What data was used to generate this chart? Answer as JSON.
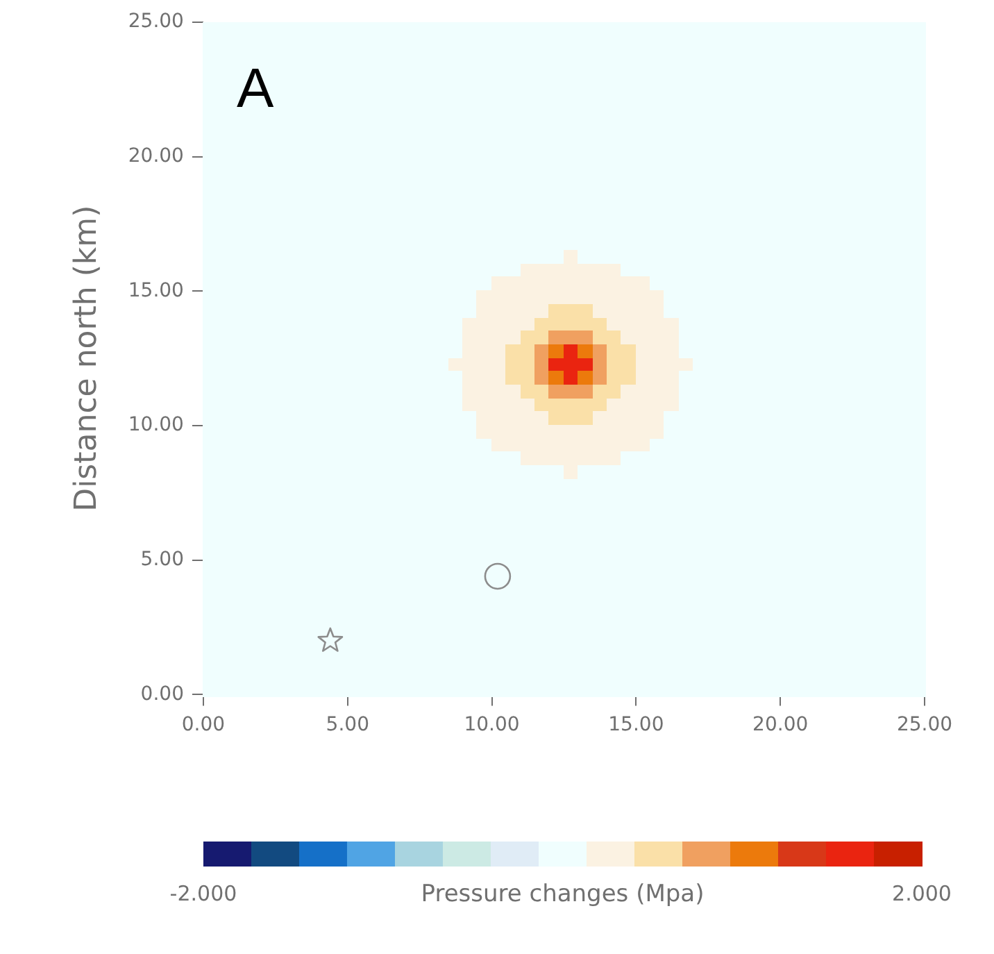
{
  "chart_data": {
    "type": "heatmap",
    "ylabel": "Distance north (km)",
    "clabel": "Pressure changes (Mpa)",
    "annotations": [
      "A"
    ],
    "xlim": [
      0,
      25
    ],
    "ylim": [
      0,
      25
    ],
    "xticks": [
      {
        "value": 0,
        "label": "0.00"
      },
      {
        "value": 5,
        "label": "5.00"
      },
      {
        "value": 10,
        "label": "10.00"
      },
      {
        "value": 15,
        "label": "15.00"
      },
      {
        "value": 20,
        "label": "20.00"
      },
      {
        "value": 25,
        "label": "25.00"
      }
    ],
    "yticks": [
      {
        "value": 0,
        "label": "0.00"
      },
      {
        "value": 5,
        "label": "5.00"
      },
      {
        "value": 10,
        "label": "10.00"
      },
      {
        "value": 15,
        "label": "15.00"
      },
      {
        "value": 20,
        "label": "20.00"
      },
      {
        "value": 25,
        "label": "25.00"
      }
    ],
    "clim": [
      -2,
      2
    ],
    "cticks": [
      {
        "value": -2,
        "label": "-2.000"
      },
      {
        "value": 2,
        "label": "2.000"
      }
    ],
    "series": [
      {
        "type": "scatter",
        "x": [
          4.4
        ],
        "values": [
          2.0
        ],
        "marker": "star",
        "color": "#8c8c8c"
      },
      {
        "type": "scatter",
        "x": [
          10.2
        ],
        "values": [
          4.4
        ],
        "marker": "circle",
        "color": "#8c8c8c"
      }
    ],
    "cells": [
      [
        0,
        0,
        0,
        0,
        0,
        0,
        0,
        0,
        0,
        0,
        0,
        0,
        0,
        0,
        0,
        0,
        0,
        0,
        0,
        0,
        0,
        0,
        0,
        0,
        0,
        0,
        0,
        0,
        0,
        0,
        0,
        0,
        0,
        0,
        0,
        0,
        0,
        0,
        0,
        0,
        0,
        0,
        0,
        0,
        0,
        0,
        0,
        0,
        0,
        0
      ],
      [
        0,
        0,
        0,
        0,
        0,
        0,
        0,
        0,
        0,
        0,
        0,
        0,
        0,
        0,
        0,
        0,
        0,
        0,
        0,
        0,
        0,
        0,
        0,
        0,
        0,
        0,
        0,
        0,
        0,
        0,
        0,
        0,
        0,
        0,
        0,
        0,
        0,
        0,
        0,
        0,
        0,
        0,
        0,
        0,
        0,
        0,
        0,
        0,
        0,
        0
      ],
      [
        0,
        0,
        0,
        0,
        0,
        0,
        0,
        0,
        0,
        0,
        0,
        0,
        0,
        0,
        0,
        0,
        0,
        0,
        0,
        0,
        0,
        0,
        0,
        0,
        0,
        0,
        0,
        0,
        0,
        0,
        0,
        0,
        0,
        0,
        0,
        0,
        0,
        0,
        0,
        0,
        0,
        0,
        0,
        0,
        0,
        0,
        0,
        0,
        0,
        0
      ],
      [
        0,
        0,
        0,
        0,
        0,
        0,
        0,
        0,
        0,
        0,
        0,
        0,
        0,
        0,
        0,
        0,
        0,
        0,
        0,
        0,
        0,
        0,
        0,
        0,
        0,
        0,
        0,
        0,
        0,
        0,
        0,
        0,
        0,
        0,
        0,
        0,
        0,
        0,
        0,
        0,
        0,
        0,
        0,
        0,
        0,
        0,
        0,
        0,
        0,
        0
      ],
      [
        0,
        0,
        0,
        0,
        0,
        0,
        0,
        0,
        0,
        0,
        0,
        0,
        0,
        0,
        0,
        0,
        0,
        0,
        0,
        0,
        0,
        0,
        0,
        0,
        0,
        0,
        0,
        0,
        0,
        0,
        0,
        0,
        0,
        0,
        0,
        0,
        0,
        0,
        0,
        0,
        0,
        0,
        0,
        0,
        0,
        0,
        0,
        0,
        0,
        0
      ],
      [
        0,
        0,
        0,
        0,
        0,
        0,
        0,
        0,
        0,
        0,
        0,
        0,
        0,
        0,
        0,
        0,
        0,
        0,
        0,
        0,
        0,
        0,
        0,
        0,
        0,
        0,
        0,
        0,
        0,
        0,
        0,
        0,
        0,
        0,
        0,
        0,
        0,
        0,
        0,
        0,
        0,
        0,
        0,
        0,
        0,
        0,
        0,
        0,
        0,
        0
      ],
      [
        0,
        0,
        0,
        0,
        0,
        0,
        0,
        0,
        0,
        0,
        0,
        0,
        0,
        0,
        0,
        0,
        0,
        0,
        0,
        0,
        0,
        0,
        0,
        0,
        0,
        0,
        0,
        0,
        0,
        0,
        0,
        0,
        0,
        0,
        0,
        0,
        0,
        0,
        0,
        0,
        0,
        0,
        0,
        0,
        0,
        0,
        0,
        0,
        0,
        0
      ],
      [
        0,
        0,
        0,
        0,
        0,
        0,
        0,
        0,
        0,
        0,
        0,
        0,
        0,
        0,
        0,
        0,
        0,
        0,
        0,
        0,
        0,
        0,
        0,
        0,
        0,
        0,
        0,
        0,
        0,
        0,
        0,
        0,
        0,
        0,
        0,
        0,
        0,
        0,
        0,
        0,
        0,
        0,
        0,
        0,
        0,
        0,
        0,
        0,
        0,
        0
      ],
      [
        0,
        0,
        0,
        0,
        0,
        0,
        0,
        0,
        0,
        0,
        0,
        0,
        0,
        0,
        0,
        0,
        0,
        0,
        0,
        0,
        0,
        0,
        0,
        0,
        0,
        0,
        0,
        0,
        0,
        0,
        0,
        0,
        0,
        0,
        0,
        0,
        0,
        0,
        0,
        0,
        0,
        0,
        0,
        0,
        0,
        0,
        0,
        0,
        0,
        0
      ],
      [
        0,
        0,
        0,
        0,
        0,
        0,
        0,
        0,
        0,
        0,
        0,
        0,
        0,
        0,
        0,
        0,
        0,
        0,
        0,
        0,
        0,
        0,
        0,
        0,
        0,
        0,
        0,
        0,
        0,
        0,
        0,
        0,
        0,
        0,
        0,
        0,
        0,
        0,
        0,
        0,
        0,
        0,
        0,
        0,
        0,
        0,
        0,
        0,
        0,
        0
      ],
      [
        0,
        0,
        0,
        0,
        0,
        0,
        0,
        0,
        0,
        0,
        0,
        0,
        0,
        0,
        0,
        0,
        0,
        0,
        0,
        0,
        0,
        0,
        0,
        0,
        0,
        0,
        0,
        0,
        0,
        0,
        0,
        0,
        0,
        0,
        0,
        0,
        0,
        0,
        0,
        0,
        0,
        0,
        0,
        0,
        0,
        0,
        0,
        0,
        0,
        0
      ],
      [
        0,
        0,
        0,
        0,
        0,
        0,
        0,
        0,
        0,
        0,
        0,
        0,
        0,
        0,
        0,
        0,
        0,
        0,
        0,
        0,
        0,
        0,
        0,
        0,
        0,
        0,
        0,
        0,
        0,
        0,
        0,
        0,
        0,
        0,
        0,
        0,
        0,
        0,
        0,
        0,
        0,
        0,
        0,
        0,
        0,
        0,
        0,
        0,
        0,
        0
      ],
      [
        0,
        0,
        0,
        0,
        0,
        0,
        0,
        0,
        0,
        0,
        0,
        0,
        0,
        0,
        0,
        0,
        0,
        0,
        0,
        0,
        0,
        0,
        0,
        0,
        0,
        0,
        0,
        0,
        0,
        0,
        0,
        0,
        0,
        0,
        0,
        0,
        0,
        0,
        0,
        0,
        0,
        0,
        0,
        0,
        0,
        0,
        0,
        0,
        0,
        0
      ],
      [
        0,
        0,
        0,
        0,
        0,
        0,
        0,
        0,
        0,
        0,
        0,
        0,
        0,
        0,
        0,
        0,
        0,
        0,
        0,
        0,
        0,
        0,
        0,
        0,
        0,
        0,
        0,
        0,
        0,
        0,
        0,
        0,
        0,
        0,
        0,
        0,
        0,
        0,
        0,
        0,
        0,
        0,
        0,
        0,
        0,
        0,
        0,
        0,
        0,
        0
      ],
      [
        0,
        0,
        0,
        0,
        0,
        0,
        0,
        0,
        0,
        0,
        0,
        0,
        0,
        0,
        0,
        0,
        0,
        0,
        0,
        0,
        0,
        0,
        0,
        0,
        0,
        0,
        0,
        0,
        0,
        0,
        0,
        0,
        0,
        0,
        0,
        0,
        0,
        0,
        0,
        0,
        0,
        0,
        0,
        0,
        0,
        0,
        0,
        0,
        0,
        0
      ],
      [
        0,
        0,
        0,
        0,
        0,
        0,
        0,
        0,
        0,
        0,
        0,
        0,
        0,
        0,
        0,
        0,
        0,
        0,
        0,
        0,
        0,
        0,
        0,
        0,
        0,
        0,
        0,
        0,
        0,
        0,
        0,
        0,
        0,
        0,
        0,
        0,
        0,
        0,
        0,
        0,
        0,
        0,
        0,
        0,
        0,
        0,
        0,
        0,
        0,
        0
      ],
      [
        0,
        0,
        0,
        0,
        0,
        0,
        0,
        0,
        0,
        0,
        0,
        0,
        0,
        0,
        0,
        0,
        0,
        0,
        0,
        0,
        0,
        0,
        0,
        0,
        0,
        0,
        0,
        0,
        0,
        0,
        0,
        0,
        0,
        0,
        0,
        0,
        0,
        0,
        0,
        0,
        0,
        0,
        0,
        0,
        0,
        0,
        0,
        0,
        0,
        0
      ],
      [
        0,
        0,
        0,
        0,
        0,
        0,
        0,
        0,
        0,
        0,
        0,
        0,
        0,
        0,
        0,
        0,
        0,
        0,
        0,
        0,
        0,
        0,
        0,
        0,
        0,
        0.3,
        0,
        0,
        0,
        0,
        0,
        0,
        0,
        0,
        0,
        0,
        0,
        0,
        0,
        0,
        0,
        0,
        0,
        0,
        0,
        0,
        0,
        0,
        0,
        0
      ],
      [
        0,
        0,
        0,
        0,
        0,
        0,
        0,
        0,
        0,
        0,
        0,
        0,
        0,
        0,
        0,
        0,
        0,
        0,
        0,
        0,
        0,
        0,
        0.3,
        0.3,
        0.3,
        0.3,
        0.3,
        0.3,
        0.3,
        0,
        0,
        0,
        0,
        0,
        0,
        0,
        0,
        0,
        0,
        0,
        0,
        0,
        0,
        0,
        0,
        0,
        0,
        0,
        0,
        0
      ],
      [
        0,
        0,
        0,
        0,
        0,
        0,
        0,
        0,
        0,
        0,
        0,
        0,
        0,
        0,
        0,
        0,
        0,
        0,
        0,
        0,
        0.3,
        0.3,
        0.3,
        0.3,
        0.3,
        0.3,
        0.3,
        0.3,
        0.3,
        0.3,
        0.3,
        0,
        0,
        0,
        0,
        0,
        0,
        0,
        0,
        0,
        0,
        0,
        0,
        0,
        0,
        0,
        0,
        0,
        0,
        0
      ],
      [
        0,
        0,
        0,
        0,
        0,
        0,
        0,
        0,
        0,
        0,
        0,
        0,
        0,
        0,
        0,
        0,
        0,
        0,
        0,
        0.3,
        0.3,
        0.3,
        0.3,
        0.3,
        0.3,
        0.3,
        0.3,
        0.3,
        0.3,
        0.3,
        0.3,
        0.3,
        0,
        0,
        0,
        0,
        0,
        0,
        0,
        0,
        0,
        0,
        0,
        0,
        0,
        0,
        0,
        0,
        0,
        0
      ],
      [
        0,
        0,
        0,
        0,
        0,
        0,
        0,
        0,
        0,
        0,
        0,
        0,
        0,
        0,
        0,
        0,
        0,
        0,
        0,
        0.3,
        0.3,
        0.3,
        0.3,
        0.3,
        0.5,
        0.5,
        0.5,
        0.3,
        0.3,
        0.3,
        0.3,
        0.3,
        0,
        0,
        0,
        0,
        0,
        0,
        0,
        0,
        0,
        0,
        0,
        0,
        0,
        0,
        0,
        0,
        0,
        0
      ],
      [
        0,
        0,
        0,
        0,
        0,
        0,
        0,
        0,
        0,
        0,
        0,
        0,
        0,
        0,
        0,
        0,
        0,
        0,
        0.3,
        0.3,
        0.3,
        0.3,
        0.3,
        0.5,
        0.5,
        0.5,
        0.5,
        0.5,
        0.3,
        0.3,
        0.3,
        0.3,
        0.3,
        0,
        0,
        0,
        0,
        0,
        0,
        0,
        0,
        0,
        0,
        0,
        0,
        0,
        0,
        0,
        0,
        0
      ],
      [
        0,
        0,
        0,
        0,
        0,
        0,
        0,
        0,
        0,
        0,
        0,
        0,
        0,
        0,
        0,
        0,
        0,
        0,
        0.3,
        0.3,
        0.3,
        0.3,
        0.5,
        0.5,
        0.8,
        0.8,
        0.8,
        0.5,
        0.5,
        0.3,
        0.3,
        0.3,
        0.3,
        0,
        0,
        0,
        0,
        0,
        0,
        0,
        0,
        0,
        0,
        0,
        0,
        0,
        0,
        0,
        0,
        0
      ],
      [
        0,
        0,
        0,
        0,
        0,
        0,
        0,
        0,
        0,
        0,
        0,
        0,
        0,
        0,
        0,
        0,
        0,
        0,
        0.3,
        0.3,
        0.3,
        0.5,
        0.5,
        0.8,
        1.1,
        1.6,
        1.1,
        0.8,
        0.5,
        0.5,
        0.3,
        0.3,
        0.3,
        0,
        0,
        0,
        0,
        0,
        0,
        0,
        0,
        0,
        0,
        0,
        0,
        0,
        0,
        0,
        0,
        0
      ],
      [
        0,
        0,
        0,
        0,
        0,
        0,
        0,
        0,
        0,
        0,
        0,
        0,
        0,
        0,
        0,
        0,
        0,
        0.3,
        0.3,
        0.3,
        0.3,
        0.5,
        0.5,
        0.8,
        1.6,
        1.6,
        1.6,
        0.8,
        0.5,
        0.5,
        0.3,
        0.3,
        0.3,
        0.3,
        0,
        0,
        0,
        0,
        0,
        0,
        0,
        0,
        0,
        0,
        0,
        0,
        0,
        0,
        0,
        0
      ],
      [
        0,
        0,
        0,
        0,
        0,
        0,
        0,
        0,
        0,
        0,
        0,
        0,
        0,
        0,
        0,
        0,
        0,
        0,
        0.3,
        0.3,
        0.3,
        0.5,
        0.5,
        0.8,
        1.1,
        1.6,
        1.1,
        0.8,
        0.5,
        0.5,
        0.3,
        0.3,
        0.3,
        0,
        0,
        0,
        0,
        0,
        0,
        0,
        0,
        0,
        0,
        0,
        0,
        0,
        0,
        0,
        0,
        0
      ],
      [
        0,
        0,
        0,
        0,
        0,
        0,
        0,
        0,
        0,
        0,
        0,
        0,
        0,
        0,
        0,
        0,
        0,
        0,
        0.3,
        0.3,
        0.3,
        0.3,
        0.5,
        0.5,
        0.8,
        0.8,
        0.8,
        0.5,
        0.5,
        0.3,
        0.3,
        0.3,
        0.3,
        0,
        0,
        0,
        0,
        0,
        0,
        0,
        0,
        0,
        0,
        0,
        0,
        0,
        0,
        0,
        0,
        0
      ],
      [
        0,
        0,
        0,
        0,
        0,
        0,
        0,
        0,
        0,
        0,
        0,
        0,
        0,
        0,
        0,
        0,
        0,
        0,
        0.3,
        0.3,
        0.3,
        0.3,
        0.3,
        0.5,
        0.5,
        0.5,
        0.5,
        0.5,
        0.3,
        0.3,
        0.3,
        0.3,
        0.3,
        0,
        0,
        0,
        0,
        0,
        0,
        0,
        0,
        0,
        0,
        0,
        0,
        0,
        0,
        0,
        0,
        0
      ],
      [
        0,
        0,
        0,
        0,
        0,
        0,
        0,
        0,
        0,
        0,
        0,
        0,
        0,
        0,
        0,
        0,
        0,
        0,
        0,
        0.3,
        0.3,
        0.3,
        0.3,
        0.3,
        0.5,
        0.5,
        0.5,
        0.3,
        0.3,
        0.3,
        0.3,
        0.3,
        0,
        0,
        0,
        0,
        0,
        0,
        0,
        0,
        0,
        0,
        0,
        0,
        0,
        0,
        0,
        0,
        0,
        0
      ],
      [
        0,
        0,
        0,
        0,
        0,
        0,
        0,
        0,
        0,
        0,
        0,
        0,
        0,
        0,
        0,
        0,
        0,
        0,
        0,
        0.3,
        0.3,
        0.3,
        0.3,
        0.3,
        0.3,
        0.3,
        0.3,
        0.3,
        0.3,
        0.3,
        0.3,
        0.3,
        0,
        0,
        0,
        0,
        0,
        0,
        0,
        0,
        0,
        0,
        0,
        0,
        0,
        0,
        0,
        0,
        0,
        0
      ],
      [
        0,
        0,
        0,
        0,
        0,
        0,
        0,
        0,
        0,
        0,
        0,
        0,
        0,
        0,
        0,
        0,
        0,
        0,
        0,
        0,
        0.3,
        0.3,
        0.3,
        0.3,
        0.3,
        0.3,
        0.3,
        0.3,
        0.3,
        0.3,
        0.3,
        0,
        0,
        0,
        0,
        0,
        0,
        0,
        0,
        0,
        0,
        0,
        0,
        0,
        0,
        0,
        0,
        0,
        0,
        0
      ],
      [
        0,
        0,
        0,
        0,
        0,
        0,
        0,
        0,
        0,
        0,
        0,
        0,
        0,
        0,
        0,
        0,
        0,
        0,
        0,
        0,
        0,
        0,
        0.3,
        0.3,
        0.3,
        0.3,
        0.3,
        0.3,
        0.3,
        0,
        0,
        0,
        0,
        0,
        0,
        0,
        0,
        0,
        0,
        0,
        0,
        0,
        0,
        0,
        0,
        0,
        0,
        0,
        0,
        0
      ],
      [
        0,
        0,
        0,
        0,
        0,
        0,
        0,
        0,
        0,
        0,
        0,
        0,
        0,
        0,
        0,
        0,
        0,
        0,
        0,
        0,
        0,
        0,
        0,
        0,
        0,
        0.3,
        0,
        0,
        0,
        0,
        0,
        0,
        0,
        0,
        0,
        0,
        0,
        0,
        0,
        0,
        0,
        0,
        0,
        0,
        0,
        0,
        0,
        0,
        0,
        0
      ],
      [
        0,
        0,
        0,
        0,
        0,
        0,
        0,
        0,
        0,
        0,
        0,
        0,
        0,
        0,
        0,
        0,
        0,
        0,
        0,
        0,
        0,
        0,
        0,
        0,
        0,
        0,
        0,
        0,
        0,
        0,
        0,
        0,
        0,
        0,
        0,
        0,
        0,
        0,
        0,
        0,
        0,
        0,
        0,
        0,
        0,
        0,
        0,
        0,
        0,
        0
      ],
      [
        0,
        0,
        0,
        0,
        0,
        0,
        0,
        0,
        0,
        0,
        0,
        0,
        0,
        0,
        0,
        0,
        0,
        0,
        0,
        0,
        0,
        0,
        0,
        0,
        0,
        0,
        0,
        0,
        0,
        0,
        0,
        0,
        0,
        0,
        0,
        0,
        0,
        0,
        0,
        0,
        0,
        0,
        0,
        0,
        0,
        0,
        0,
        0,
        0,
        0
      ],
      [
        0,
        0,
        0,
        0,
        0,
        0,
        0,
        0,
        0,
        0,
        0,
        0,
        0,
        0,
        0,
        0,
        0,
        0,
        0,
        0,
        0,
        0,
        0,
        0,
        0,
        0,
        0,
        0,
        0,
        0,
        0,
        0,
        0,
        0,
        0,
        0,
        0,
        0,
        0,
        0,
        0,
        0,
        0,
        0,
        0,
        0,
        0,
        0,
        0,
        0
      ],
      [
        0,
        0,
        0,
        0,
        0,
        0,
        0,
        0,
        0,
        0,
        0,
        0,
        0,
        0,
        0,
        0,
        0,
        0,
        0,
        0,
        0,
        0,
        0,
        0,
        0,
        0,
        0,
        0,
        0,
        0,
        0,
        0,
        0,
        0,
        0,
        0,
        0,
        0,
        0,
        0,
        0,
        0,
        0,
        0,
        0,
        0,
        0,
        0,
        0,
        0
      ],
      [
        0,
        0,
        0,
        0,
        0,
        0,
        0,
        0,
        0,
        0,
        0,
        0,
        0,
        0,
        0,
        0,
        0,
        0,
        0,
        0,
        0,
        0,
        0,
        0,
        0,
        0,
        0,
        0,
        0,
        0,
        0,
        0,
        0,
        0,
        0,
        0,
        0,
        0,
        0,
        0,
        0,
        0,
        0,
        0,
        0,
        0,
        0,
        0,
        0,
        0
      ],
      [
        0,
        0,
        0,
        0,
        0,
        0,
        0,
        0,
        0,
        0,
        0,
        0,
        0,
        0,
        0,
        0,
        0,
        0,
        0,
        0,
        0,
        0,
        0,
        0,
        0,
        0,
        0,
        0,
        0,
        0,
        0,
        0,
        0,
        0,
        0,
        0,
        0,
        0,
        0,
        0,
        0,
        0,
        0,
        0,
        0,
        0,
        0,
        0,
        0,
        0
      ],
      [
        0,
        0,
        0,
        0,
        0,
        0,
        0,
        0,
        0,
        0,
        0,
        0,
        0,
        0,
        0,
        0,
        0,
        0,
        0,
        0,
        0,
        0,
        0,
        0,
        0,
        0,
        0,
        0,
        0,
        0,
        0,
        0,
        0,
        0,
        0,
        0,
        0,
        0,
        0,
        0,
        0,
        0,
        0,
        0,
        0,
        0,
        0,
        0,
        0,
        0
      ],
      [
        0,
        0,
        0,
        0,
        0,
        0,
        0,
        0,
        0,
        0,
        0,
        0,
        0,
        0,
        0,
        0,
        0,
        0,
        0,
        0,
        0,
        0,
        0,
        0,
        0,
        0,
        0,
        0,
        0,
        0,
        0,
        0,
        0,
        0,
        0,
        0,
        0,
        0,
        0,
        0,
        0,
        0,
        0,
        0,
        0,
        0,
        0,
        0,
        0,
        0
      ],
      [
        0,
        0,
        0,
        0,
        0,
        0,
        0,
        0,
        0,
        0,
        0,
        0,
        0,
        0,
        0,
        0,
        0,
        0,
        0,
        0,
        0,
        0,
        0,
        0,
        0,
        0,
        0,
        0,
        0,
        0,
        0,
        0,
        0,
        0,
        0,
        0,
        0,
        0,
        0,
        0,
        0,
        0,
        0,
        0,
        0,
        0,
        0,
        0,
        0,
        0
      ],
      [
        0,
        0,
        0,
        0,
        0,
        0,
        0,
        0,
        0,
        0,
        0,
        0,
        0,
        0,
        0,
        0,
        0,
        0,
        0,
        0,
        0,
        0,
        0,
        0,
        0,
        0,
        0,
        0,
        0,
        0,
        0,
        0,
        0,
        0,
        0,
        0,
        0,
        0,
        0,
        0,
        0,
        0,
        0,
        0,
        0,
        0,
        0,
        0,
        0,
        0
      ],
      [
        0,
        0,
        0,
        0,
        0,
        0,
        0,
        0,
        0,
        0,
        0,
        0,
        0,
        0,
        0,
        0,
        0,
        0,
        0,
        0,
        0,
        0,
        0,
        0,
        0,
        0,
        0,
        0,
        0,
        0,
        0,
        0,
        0,
        0,
        0,
        0,
        0,
        0,
        0,
        0,
        0,
        0,
        0,
        0,
        0,
        0,
        0,
        0,
        0,
        0
      ],
      [
        0,
        0,
        0,
        0,
        0,
        0,
        0,
        0,
        0,
        0,
        0,
        0,
        0,
        0,
        0,
        0,
        0,
        0,
        0,
        0,
        0,
        0,
        0,
        0,
        0,
        0,
        0,
        0,
        0,
        0,
        0,
        0,
        0,
        0,
        0,
        0,
        0,
        0,
        0,
        0,
        0,
        0,
        0,
        0,
        0,
        0,
        0,
        0,
        0,
        0
      ],
      [
        0,
        0,
        0,
        0,
        0,
        0,
        0,
        0,
        0,
        0,
        0,
        0,
        0,
        0,
        0,
        0,
        0,
        0,
        0,
        0,
        0,
        0,
        0,
        0,
        0,
        0,
        0,
        0,
        0,
        0,
        0,
        0,
        0,
        0,
        0,
        0,
        0,
        0,
        0,
        0,
        0,
        0,
        0,
        0,
        0,
        0,
        0,
        0,
        0,
        0
      ],
      [
        0,
        0,
        0,
        0,
        0,
        0,
        0,
        0,
        0,
        0,
        0,
        0,
        0,
        0,
        0,
        0,
        0,
        0,
        0,
        0,
        0,
        0,
        0,
        0,
        0,
        0,
        0,
        0,
        0,
        0,
        0,
        0,
        0,
        0,
        0,
        0,
        0,
        0,
        0,
        0,
        0,
        0,
        0,
        0,
        0,
        0,
        0,
        0,
        0,
        0
      ],
      [
        0,
        0,
        0,
        0,
        0,
        0,
        0,
        0,
        0,
        0,
        0,
        0,
        0,
        0,
        0,
        0,
        0,
        0,
        0,
        0,
        0,
        0,
        0,
        0,
        0,
        0,
        0,
        0,
        0,
        0,
        0,
        0,
        0,
        0,
        0,
        0,
        0,
        0,
        0,
        0,
        0,
        0,
        0,
        0,
        0,
        0,
        0,
        0,
        0,
        0
      ],
      [
        0,
        0,
        0,
        0,
        0,
        0,
        0,
        0,
        0,
        0,
        0,
        0,
        0,
        0,
        0,
        0,
        0,
        0,
        0,
        0,
        0,
        0,
        0,
        0,
        0,
        0,
        0,
        0,
        0,
        0,
        0,
        0,
        0,
        0,
        0,
        0,
        0,
        0,
        0,
        0,
        0,
        0,
        0,
        0,
        0,
        0,
        0,
        0,
        0,
        0
      ]
    ]
  }
}
